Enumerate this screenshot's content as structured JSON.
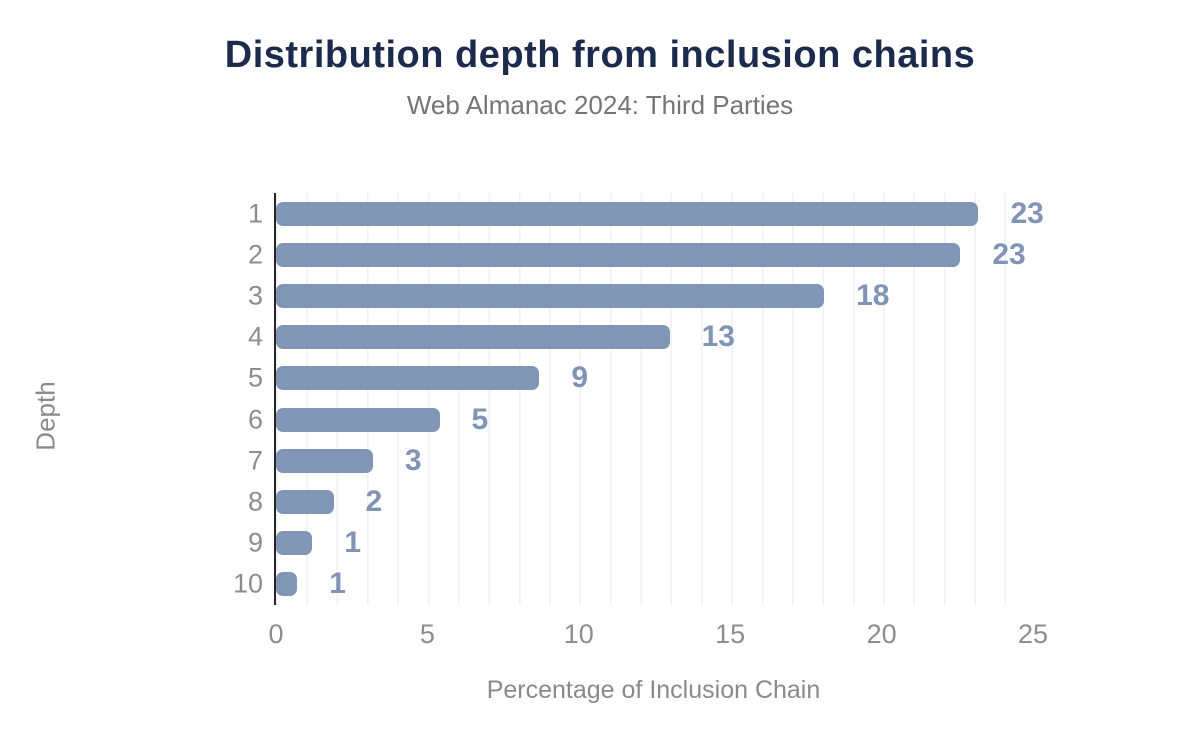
{
  "header": {
    "title": "Distribution depth from inclusion chains",
    "subtitle": "Web Almanac 2024: Third Parties"
  },
  "colors": {
    "title": "#1c2b4d",
    "subtitle_gray": "#757575",
    "bar_blue": "#8195b6",
    "data_label_blue": "#8094b7",
    "tick_gray": "#8d8d8d",
    "axis_line": "#262626",
    "gridline": "#f1f1f1",
    "background": "#ffffff"
  },
  "chart_data": {
    "type": "bar",
    "orientation": "horizontal",
    "title": "Distribution depth from inclusion chains",
    "subtitle": "Web Almanac 2024: Third Parties",
    "xlabel": "Percentage of Inclusion Chain",
    "ylabel": "Depth",
    "categories": [
      "1",
      "2",
      "3",
      "4",
      "5",
      "6",
      "7",
      "8",
      "9",
      "10"
    ],
    "values": [
      23.2,
      22.6,
      18.1,
      13.0,
      8.7,
      5.4,
      3.2,
      1.9,
      1.2,
      0.7
    ],
    "value_labels": [
      "23",
      "23",
      "18",
      "13",
      "9",
      "5",
      "3",
      "2",
      "1",
      "1"
    ],
    "xlim": [
      0,
      25
    ],
    "xticks": [
      0,
      5,
      10,
      15,
      20,
      25
    ],
    "grid": "minor vertical gridlines every 1 unit",
    "legend": "none"
  }
}
